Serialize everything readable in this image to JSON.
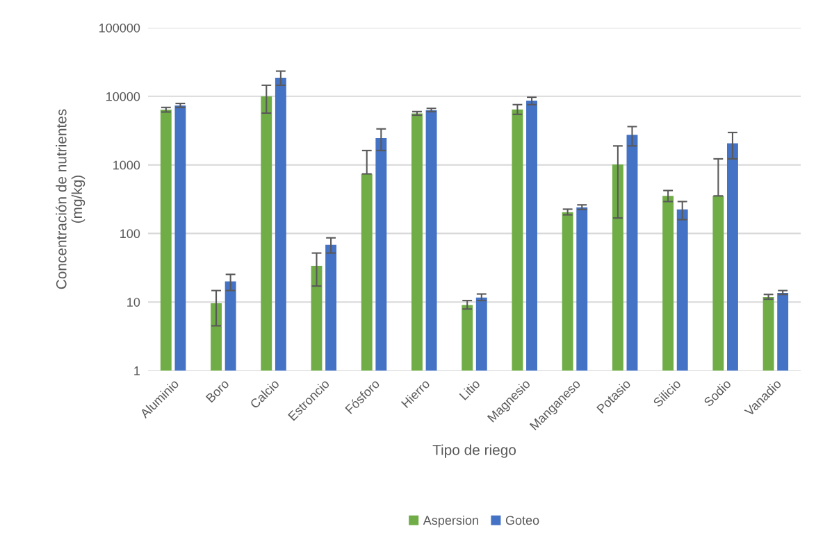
{
  "chart_data": {
    "type": "bar",
    "xlabel": "Tipo de riego",
    "ylabel": "Concentración de nutrientes\n(mg/kg)",
    "categories": [
      "Aluminio",
      "Boro",
      "Calcio",
      "Estroncio",
      "Fósforo",
      "Hierro",
      "Litio",
      "Magnesio",
      "Manganeso",
      "Potasio",
      "Silicio",
      "Sodio",
      "Vanadio"
    ],
    "series": [
      {
        "name": "Aspersion",
        "color": "#70ad47",
        "values": [
          6380,
          9.6,
          10000,
          33.7,
          739,
          5630,
          9.05,
          6430,
          204,
          1016,
          353,
          353,
          11.85
        ],
        "errors": [
          [
            5900,
            6890
          ],
          [
            4.5,
            14.7
          ],
          [
            5690,
            14500
          ],
          [
            17.1,
            51.8
          ],
          [
            739,
            1620
          ],
          [
            5300,
            5990
          ],
          [
            7.9,
            10.5
          ],
          [
            5460,
            7570
          ],
          [
            187,
            226
          ],
          [
            168,
            1890
          ],
          [
            292,
            423
          ],
          [
            353,
            1225
          ],
          [
            11.0,
            12.9
          ]
        ]
      },
      {
        "name": "Goteo",
        "color": "#4472c4",
        "values": [
          7340,
          20,
          18700,
          68.4,
          2460,
          6280,
          11.6,
          8630,
          240,
          2740,
          224,
          2060,
          13.6
        ],
        "errors": [
          [
            6890,
            7870
          ],
          [
            14.7,
            25.3
          ],
          [
            14500,
            23300
          ],
          [
            51.8,
            86.3
          ],
          [
            1620,
            3350
          ],
          [
            5990,
            6680
          ],
          [
            10.5,
            13.1
          ],
          [
            7570,
            9700
          ],
          [
            224,
            261
          ],
          [
            1890,
            3620
          ],
          [
            159,
            292
          ],
          [
            1225,
            2970
          ],
          [
            12.9,
            14.7
          ]
        ]
      }
    ],
    "log": "y",
    "ylim": [
      1,
      100000
    ],
    "yticks": [
      1,
      10,
      100,
      1000,
      10000,
      100000
    ],
    "grid": "y",
    "legend": "bottom"
  }
}
